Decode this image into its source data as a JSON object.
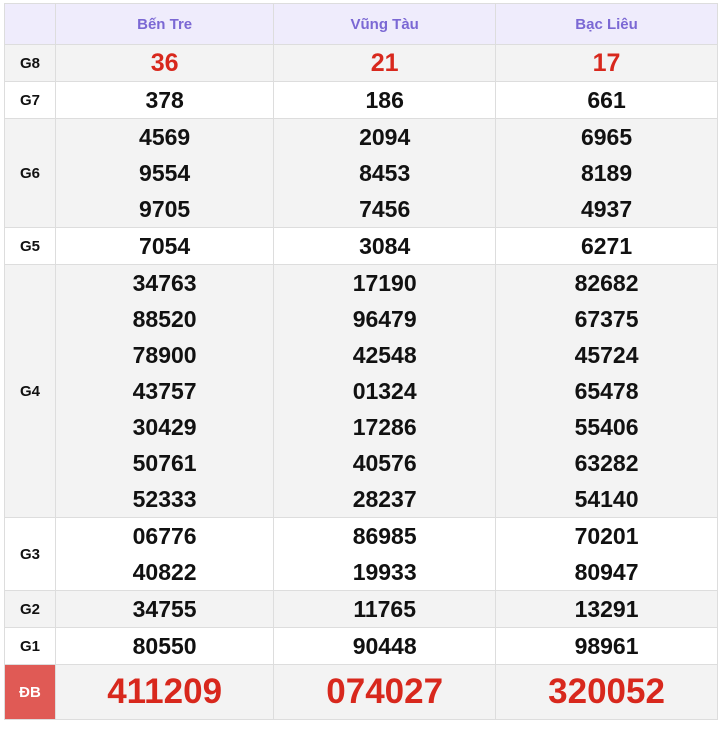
{
  "header": {
    "provinces": [
      "Bến Tre",
      "Vũng Tàu",
      "Bạc Liêu"
    ]
  },
  "rows": [
    {
      "label": "G8",
      "values": [
        [
          "36"
        ],
        [
          "21"
        ],
        [
          "17"
        ]
      ]
    },
    {
      "label": "G7",
      "values": [
        [
          "378"
        ],
        [
          "186"
        ],
        [
          "661"
        ]
      ]
    },
    {
      "label": "G6",
      "values": [
        [
          "4569",
          "9554",
          "9705"
        ],
        [
          "2094",
          "8453",
          "7456"
        ],
        [
          "6965",
          "8189",
          "4937"
        ]
      ]
    },
    {
      "label": "G5",
      "values": [
        [
          "7054"
        ],
        [
          "3084"
        ],
        [
          "6271"
        ]
      ]
    },
    {
      "label": "G4",
      "values": [
        [
          "34763",
          "88520",
          "78900",
          "43757",
          "30429",
          "50761",
          "52333"
        ],
        [
          "17190",
          "96479",
          "42548",
          "01324",
          "17286",
          "40576",
          "28237"
        ],
        [
          "82682",
          "67375",
          "45724",
          "65478",
          "55406",
          "63282",
          "54140"
        ]
      ]
    },
    {
      "label": "G3",
      "values": [
        [
          "06776",
          "40822"
        ],
        [
          "86985",
          "19933"
        ],
        [
          "70201",
          "80947"
        ]
      ]
    },
    {
      "label": "G2",
      "values": [
        [
          "34755"
        ],
        [
          "11765"
        ],
        [
          "13291"
        ]
      ]
    },
    {
      "label": "G1",
      "values": [
        [
          "80550"
        ],
        [
          "90448"
        ],
        [
          "98961"
        ]
      ]
    },
    {
      "label": "ĐB",
      "values": [
        [
          "411209"
        ],
        [
          "074027"
        ],
        [
          "320052"
        ]
      ]
    }
  ],
  "colors": {
    "header_text": "#7b68d4",
    "highlight": "#d8281d",
    "db_label_bg": "#e05a55"
  }
}
